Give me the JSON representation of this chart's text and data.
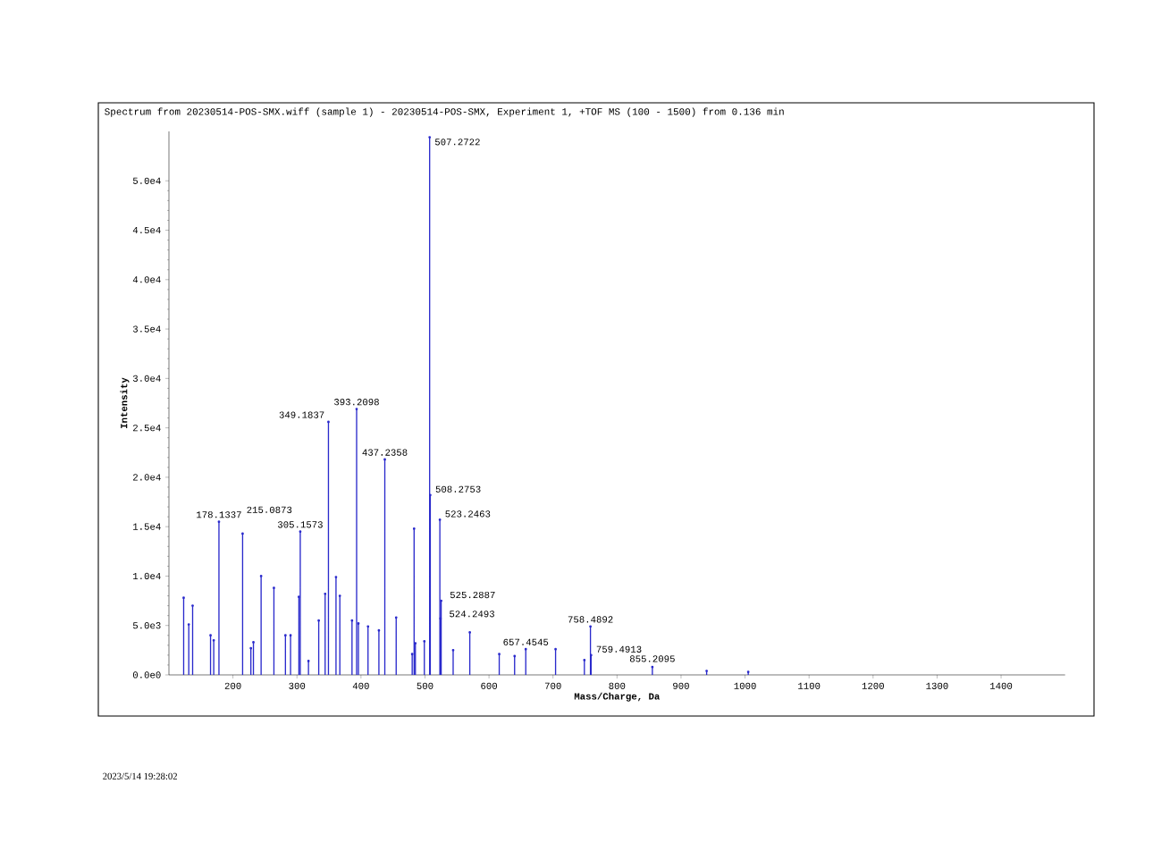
{
  "chart_data": {
    "type": "lollipop",
    "title": "Spectrum from 20230514-POS-SMX.wiff (sample 1) - 20230514-POS-SMX, Experiment 1, +TOF MS (100 - 1500) from 0.136 min",
    "xlabel": "Mass/Charge, Da",
    "ylabel": "Intensity",
    "color": "#2a2acc",
    "x": [
      123,
      131,
      137,
      165,
      170,
      178.1337,
      215.0873,
      228,
      232,
      244,
      264,
      282,
      290,
      303,
      305.1573,
      318,
      334,
      344,
      349.1837,
      361,
      367,
      386,
      393.2098,
      396,
      411,
      428,
      437.2358,
      455,
      480,
      483,
      485,
      499,
      507.2722,
      508.2753,
      523.2463,
      524.2493,
      525.2887,
      544,
      570,
      616,
      640,
      657.4545,
      704,
      749,
      758.4892,
      759.4913,
      855.2095,
      940,
      1005
    ],
    "values": [
      7800,
      5100,
      7000,
      4000,
      3500,
      15500,
      14300,
      2700,
      3300,
      10000,
      8800,
      4000,
      4000,
      7900,
      14500,
      1400,
      5500,
      8200,
      25600,
      9900,
      8000,
      5500,
      26900,
      5200,
      4900,
      4500,
      21800,
      5800,
      2100,
      14800,
      3200,
      3400,
      54400,
      18200,
      15700,
      5700,
      7500,
      2500,
      4300,
      2100,
      1900,
      2600,
      2600,
      1500,
      4900,
      2000,
      800,
      400,
      300
    ],
    "xlim": [
      100,
      1500
    ],
    "ylim": [
      0,
      55000
    ],
    "xticks": [
      200,
      300,
      400,
      500,
      600,
      700,
      800,
      900,
      1000,
      1100,
      1200,
      1300,
      1400
    ],
    "yticks": [
      {
        "value": 0,
        "label": "0.0e0"
      },
      {
        "value": 5000,
        "label": "5.0e3"
      },
      {
        "value": 10000,
        "label": "1.0e4"
      },
      {
        "value": 15000,
        "label": "1.5e4"
      },
      {
        "value": 20000,
        "label": "2.0e4"
      },
      {
        "value": 25000,
        "label": "2.5e4"
      },
      {
        "value": 30000,
        "label": "3.0e4"
      },
      {
        "value": 35000,
        "label": "3.5e4"
      },
      {
        "value": 40000,
        "label": "4.0e4"
      },
      {
        "value": 45000,
        "label": "4.5e4"
      },
      {
        "value": 50000,
        "label": "5.0e4"
      }
    ],
    "annotations": [
      {
        "text": "178.1337",
        "x": 178.1337,
        "y": 15500
      },
      {
        "text": "215.0873",
        "x": 215.0873,
        "y": 14300
      },
      {
        "text": "305.1573",
        "x": 305.1573,
        "y": 14500
      },
      {
        "text": "349.1837",
        "x": 349.1837,
        "y": 25600
      },
      {
        "text": "393.2098",
        "x": 393.2098,
        "y": 26900
      },
      {
        "text": "437.2358",
        "x": 437.2358,
        "y": 21800
      },
      {
        "text": "507.2722",
        "x": 507.2722,
        "y": 54400
      },
      {
        "text": "508.2753",
        "x": 508.2753,
        "y": 18200
      },
      {
        "text": "523.2463",
        "x": 523.2463,
        "y": 15700
      },
      {
        "text": "524.2493",
        "x": 524.2493,
        "y": 5700
      },
      {
        "text": "525.2887",
        "x": 525.2887,
        "y": 7500
      },
      {
        "text": "657.4545",
        "x": 657.4545,
        "y": 2600
      },
      {
        "text": "758.4892",
        "x": 758.4892,
        "y": 4900
      },
      {
        "text": "759.4913",
        "x": 759.4913,
        "y": 2000
      },
      {
        "text": "855.2095",
        "x": 855.2095,
        "y": 800
      },
      "2023/5/14 19:28:02"
    ]
  }
}
